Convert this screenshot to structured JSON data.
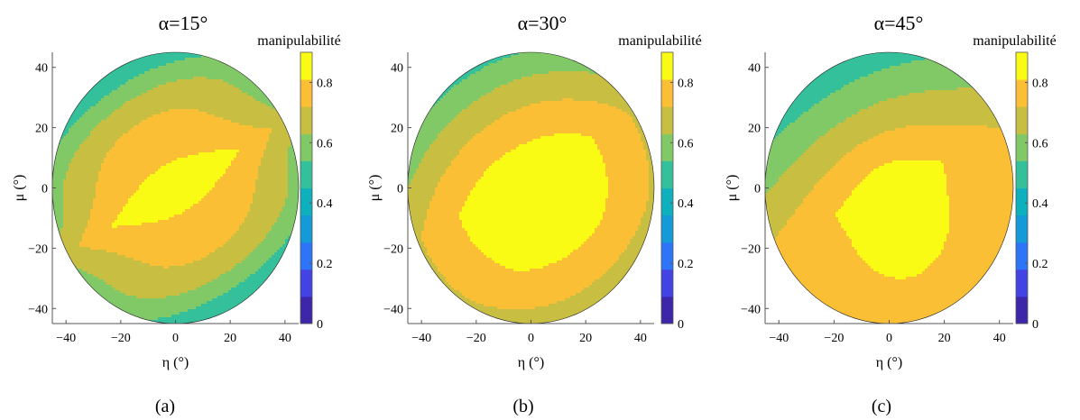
{
  "figure": {
    "captions": [
      "(a)",
      "(b)",
      "(c)"
    ],
    "colormap": [
      "#3e26a8",
      "#4343e3",
      "#2d75f7",
      "#149ad7",
      "#0db0bc",
      "#35c09c",
      "#81c866",
      "#c8be41",
      "#fbbf35",
      "#f9fb14"
    ]
  },
  "chart_data": [
    {
      "type": "contour",
      "title": "α=15°",
      "xlabel": "η (°)",
      "ylabel": "μ (°)",
      "colorbar_label": "manipulabilité",
      "xlim": [
        -45,
        45
      ],
      "ylim": [
        -45,
        45
      ],
      "xticks": [
        -40,
        -20,
        0,
        20,
        40
      ],
      "yticks": [
        -40,
        -20,
        0,
        20,
        40
      ],
      "colorbar_range": [
        0,
        0.9
      ],
      "colorbar_ticks": [
        0,
        0.2,
        0.4,
        0.6,
        0.8
      ],
      "domain": "circle of radius 45° centred at (0,0)",
      "center_value": 0.9,
      "levels": [
        0.6,
        0.7,
        0.8,
        0.9
      ],
      "grid": false
    },
    {
      "type": "contour",
      "title": "α=30°",
      "xlabel": "η (°)",
      "ylabel": "μ (°)",
      "colorbar_label": "manipulabilité",
      "xlim": [
        -45,
        45
      ],
      "ylim": [
        -45,
        45
      ],
      "xticks": [
        -40,
        -20,
        0,
        20,
        40
      ],
      "yticks": [
        -40,
        -20,
        0,
        20,
        40
      ],
      "colorbar_range": [
        0,
        0.9
      ],
      "colorbar_ticks": [
        0,
        0.2,
        0.4,
        0.6,
        0.8
      ],
      "domain": "circle of radius 45° centred at (0,0)",
      "center_value": 0.9,
      "levels": [
        0.3,
        0.4,
        0.5,
        0.6,
        0.7,
        0.8,
        0.9
      ],
      "grid": false
    },
    {
      "type": "contour",
      "title": "α=45°",
      "xlabel": "η (°)",
      "ylabel": "μ (°)",
      "colorbar_label": "manipulabilité",
      "xlim": [
        -45,
        45
      ],
      "ylim": [
        -45,
        45
      ],
      "xticks": [
        -40,
        -20,
        0,
        20,
        40
      ],
      "yticks": [
        -40,
        -20,
        0,
        20,
        40
      ],
      "colorbar_range": [
        0,
        0.9
      ],
      "colorbar_ticks": [
        0,
        0.2,
        0.4,
        0.6,
        0.8
      ],
      "domain": "circle of radius 45° centred at (0,0)",
      "center_value": 0.9,
      "levels": [
        0.1,
        0.2,
        0.3,
        0.4,
        0.5,
        0.6,
        0.7,
        0.8,
        0.9
      ],
      "grid": false
    }
  ]
}
